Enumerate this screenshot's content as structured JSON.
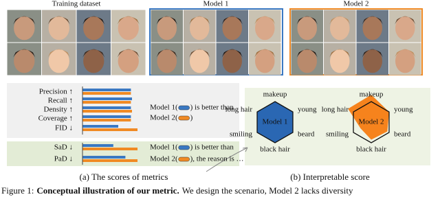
{
  "figure": {
    "panels": [
      {
        "title": "Training dataset"
      },
      {
        "title": "Model 1"
      },
      {
        "title": "Model 2"
      }
    ],
    "caption": {
      "label": "Figure 1:",
      "bold": "Conceptual illustration of our metric.",
      "text": "We design the scenario, Model 2 lacks diversity"
    }
  },
  "chart_data": [
    {
      "type": "hbar",
      "title": "(a) The scores of metrics",
      "categories": [
        "Precision ↑",
        "Recall ↑",
        "Density ↑",
        "Coverage ↑",
        "FID ↓",
        "SaD ↓",
        "PaD ↓"
      ],
      "series": [
        {
          "name": "Model 1",
          "color": "#3a78c2",
          "values": [
            0.88,
            0.9,
            0.88,
            0.88,
            0.65,
            0.56,
            0.78
          ]
        },
        {
          "name": "Model 2",
          "color": "#f08a24",
          "values": [
            0.88,
            0.88,
            0.9,
            0.88,
            1.0,
            1.0,
            1.0
          ]
        }
      ],
      "xlim": [
        0,
        1
      ],
      "notes": [
        [
          [
            "Model 1(",
            ") is better than"
          ],
          [
            "Model 2(",
            ")"
          ]
        ],
        [
          [
            "Model 1(",
            ") is better than"
          ],
          [
            "Model 2(",
            "), the reason is …"
          ]
        ]
      ]
    },
    {
      "type": "radar",
      "title": "(b) Interpretable score",
      "axes": [
        "makeup",
        "young",
        "beard",
        "black hair",
        "smiling",
        "long hair"
      ],
      "series": [
        {
          "name": "Model 1",
          "color": "#1f5fb0",
          "values": [
            1,
            1,
            1,
            1,
            1,
            1
          ]
        },
        {
          "name": "Model 2",
          "color": "#f57c12",
          "values": [
            1.33,
            1.0,
            0.9,
            0.85,
            0.6,
            1.3
          ]
        }
      ],
      "rlim": [
        0,
        1
      ]
    }
  ]
}
